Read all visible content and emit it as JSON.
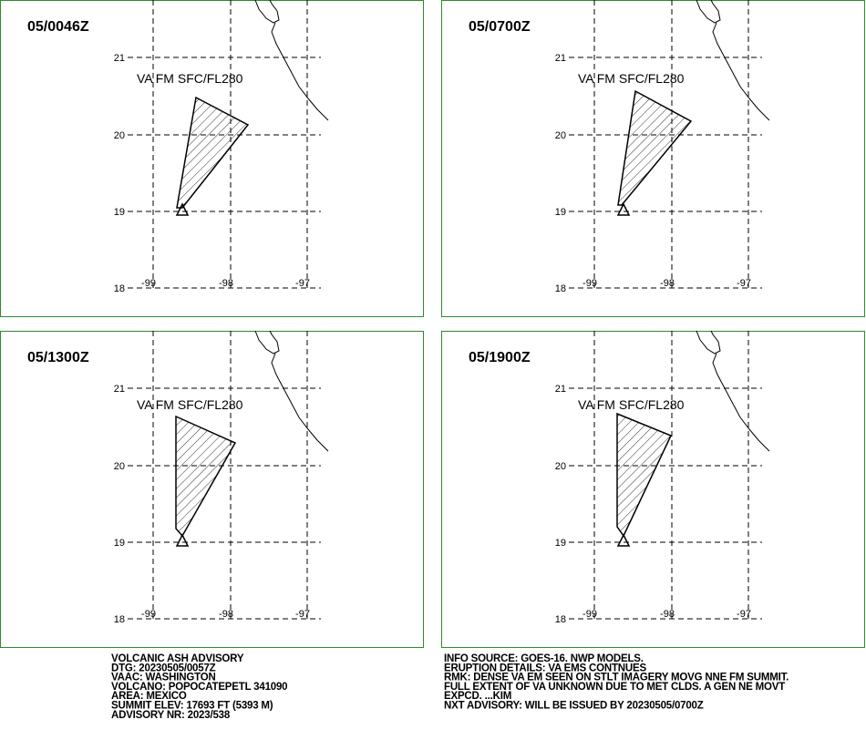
{
  "grid": {
    "lat_labels": [
      "21",
      "20",
      "19",
      "18"
    ],
    "lon_labels": [
      "-99",
      "-98",
      "-97"
    ]
  },
  "panels": [
    {
      "time": "05/0046Z",
      "area_label": "VA FM SFC/FL280"
    },
    {
      "time": "05/0700Z",
      "area_label": "VA FM SFC/FL280"
    },
    {
      "time": "05/1300Z",
      "area_label": "VA FM SFC/FL280"
    },
    {
      "time": "05/1900Z",
      "area_label": "VA FM SFC/FL280"
    }
  ],
  "advisory": {
    "left": [
      "VOLCANIC ASH ADVISORY",
      "DTG: 20230505/0057Z",
      "VAAC: WASHINGTON",
      "VOLCANO: POPOCATEPETL 341090",
      "AREA: MEXICO",
      "SUMMIT ELEV: 17693 FT (5393 M)",
      "ADVISORY NR: 2023/538"
    ],
    "right": [
      "INFO SOURCE: GOES-16. NWP MODELS.",
      "ERUPTION DETAILS: VA EMS CONTNUES",
      "RMK: DENSE VA EM SEEN ON STLT IMAGERY MOVG NNE FM SUMMIT.",
      "FULL EXTENT OF VA UNKNOWN DUE TO MET CLDS. A GEN NE MOVT",
      "EXPCD. ...KIM",
      "NXT ADVISORY: WILL BE ISSUED BY 20230505/0700Z"
    ]
  }
}
